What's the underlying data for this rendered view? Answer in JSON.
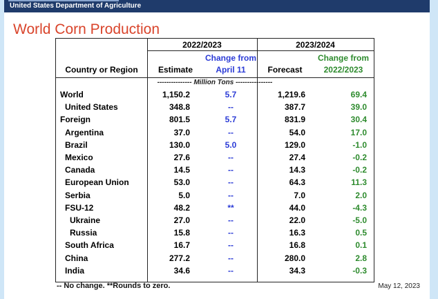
{
  "header": {
    "agency": "United States Department of Agriculture"
  },
  "title": "World Corn Production",
  "table": {
    "period_2022": "2022/2023",
    "period_2023": "2023/2024",
    "col_country": "Country or Region",
    "col_estimate": "Estimate",
    "col_change_april_l1": "Change from",
    "col_change_april_l2": "April 11",
    "col_forecast": "Forecast",
    "col_change_prev_l1": "Change from",
    "col_change_prev_l2": "2022/2023",
    "units": "--------------- Million Tons ----------------",
    "rows": [
      {
        "name": "World",
        "indent": 0,
        "estimate": "1,150.2",
        "change_april": "5.7",
        "forecast": "1,219.6",
        "change_prev": "69.4"
      },
      {
        "name": "United States",
        "indent": 1,
        "estimate": "348.8",
        "change_april": "--",
        "forecast": "387.7",
        "change_prev": "39.0"
      },
      {
        "name": "Foreign",
        "indent": 0,
        "estimate": "801.5",
        "change_april": "5.7",
        "forecast": "831.9",
        "change_prev": "30.4"
      },
      {
        "name": "Argentina",
        "indent": 1,
        "estimate": "37.0",
        "change_april": "--",
        "forecast": "54.0",
        "change_prev": "17.0"
      },
      {
        "name": "Brazil",
        "indent": 1,
        "estimate": "130.0",
        "change_april": "5.0",
        "forecast": "129.0",
        "change_prev": "-1.0"
      },
      {
        "name": "Mexico",
        "indent": 1,
        "estimate": "27.6",
        "change_april": "--",
        "forecast": "27.4",
        "change_prev": "-0.2"
      },
      {
        "name": "Canada",
        "indent": 1,
        "estimate": "14.5",
        "change_april": "--",
        "forecast": "14.3",
        "change_prev": "-0.2"
      },
      {
        "name": "European Union",
        "indent": 1,
        "estimate": "53.0",
        "change_april": "--",
        "forecast": "64.3",
        "change_prev": "11.3"
      },
      {
        "name": "Serbia",
        "indent": 1,
        "estimate": "5.0",
        "change_april": "--",
        "forecast": "7.0",
        "change_prev": "2.0"
      },
      {
        "name": "FSU-12",
        "indent": 1,
        "estimate": "48.2",
        "change_april": "**",
        "forecast": "44.0",
        "change_prev": "-4.3"
      },
      {
        "name": "Ukraine",
        "indent": 2,
        "estimate": "27.0",
        "change_april": "--",
        "forecast": "22.0",
        "change_prev": "-5.0"
      },
      {
        "name": "Russia",
        "indent": 2,
        "estimate": "15.8",
        "change_april": "--",
        "forecast": "16.3",
        "change_prev": "0.5"
      },
      {
        "name": "South Africa",
        "indent": 1,
        "estimate": "16.7",
        "change_april": "--",
        "forecast": "16.8",
        "change_prev": "0.1"
      },
      {
        "name": "China",
        "indent": 1,
        "estimate": "277.2",
        "change_april": "--",
        "forecast": "280.0",
        "change_prev": "2.8"
      },
      {
        "name": "India",
        "indent": 1,
        "estimate": "34.6",
        "change_april": "--",
        "forecast": "34.3",
        "change_prev": "-0.3"
      }
    ]
  },
  "footnote": "-- No change.  **Rounds to zero.",
  "date": "May 12, 2023",
  "colors": {
    "title": "#d9442b",
    "change_april": "#2b3bd6",
    "change_prev": "#2e8b2e",
    "banner": "#1f3b6b"
  }
}
